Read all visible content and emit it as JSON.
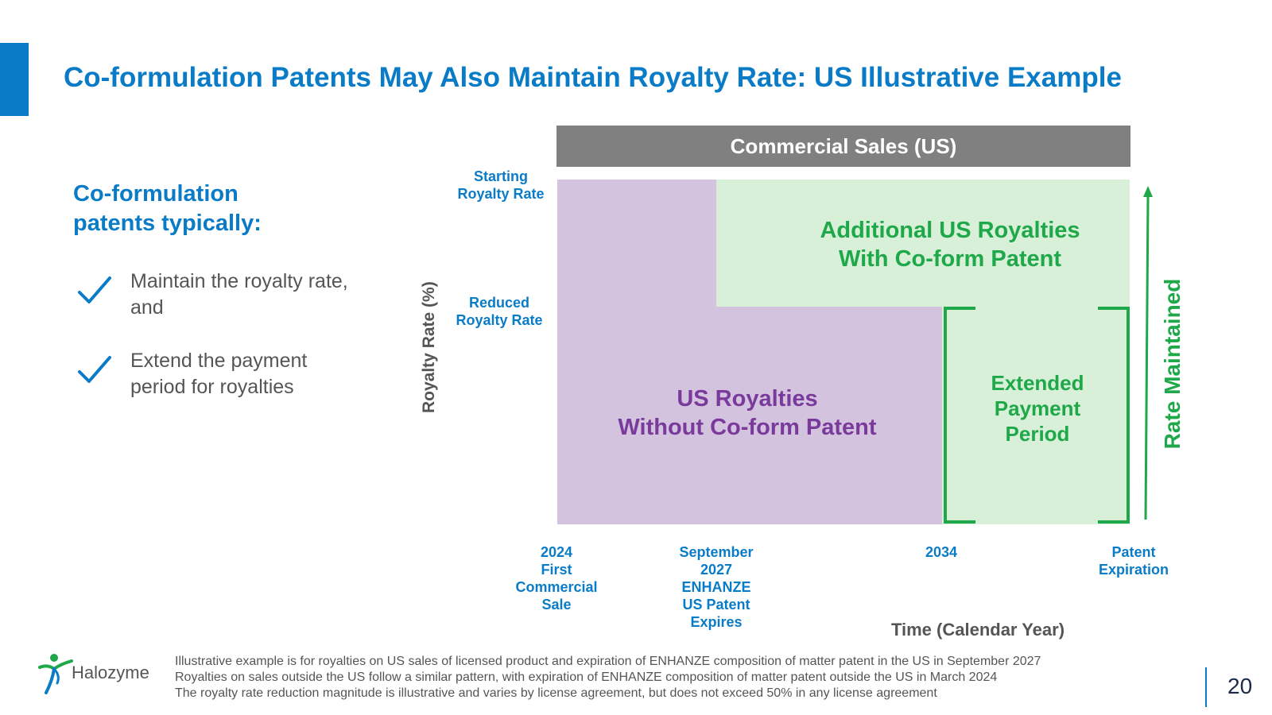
{
  "title": "Co-formulation Patents May Also Maintain Royalty Rate: US Illustrative Example",
  "left_panel": {
    "heading": "Co-formulation patents typically:",
    "bullets": [
      {
        "icon": "check-icon",
        "text": "Maintain the royalty rate, and"
      },
      {
        "icon": "check-icon",
        "text": "Extend the payment period for royalties"
      }
    ]
  },
  "diagram": {
    "header": "Commercial Sales (US)",
    "y_axis_label": "Royalty Rate (%)",
    "y_markers": {
      "starting": "Starting\nRoyalty Rate",
      "reduced": "Reduced\nRoyalty Rate"
    },
    "regions": {
      "additional": "Additional US Royalties\nWith Co-form Patent",
      "without": "US Royalties\nWithout Co-form Patent",
      "extended": "Extended\nPayment\nPeriod"
    },
    "rate_maintained": "Rate Maintained",
    "x_markers": [
      "2024\nFirst\nCommercial\nSale",
      "September\n2027\nENHANZE\nUS Patent\nExpires",
      "2034",
      "Patent\nExpiration"
    ],
    "x_axis_label": "Time (Calendar Year)"
  },
  "footer": {
    "logo_text": "Halozyme",
    "notes": [
      "Illustrative example is for royalties on US sales of licensed product and expiration of ENHANZE composition of matter patent in the US in September 2027",
      "Royalties on sales outside the US follow a similar pattern, with expiration of ENHANZE composition of matter patent outside the US in March 2024",
      "The royalty rate reduction magnitude is illustrative and varies by license agreement, but does not exceed 50% in any license agreement"
    ],
    "page_number": "20"
  },
  "colors": {
    "brand_blue": "#0a7cc7",
    "purple_fill": "#d4c3df",
    "purple_text": "#7a3a9c",
    "green_fill": "#d7f0d7",
    "green_text": "#1fa84a",
    "header_gray": "#808080"
  }
}
